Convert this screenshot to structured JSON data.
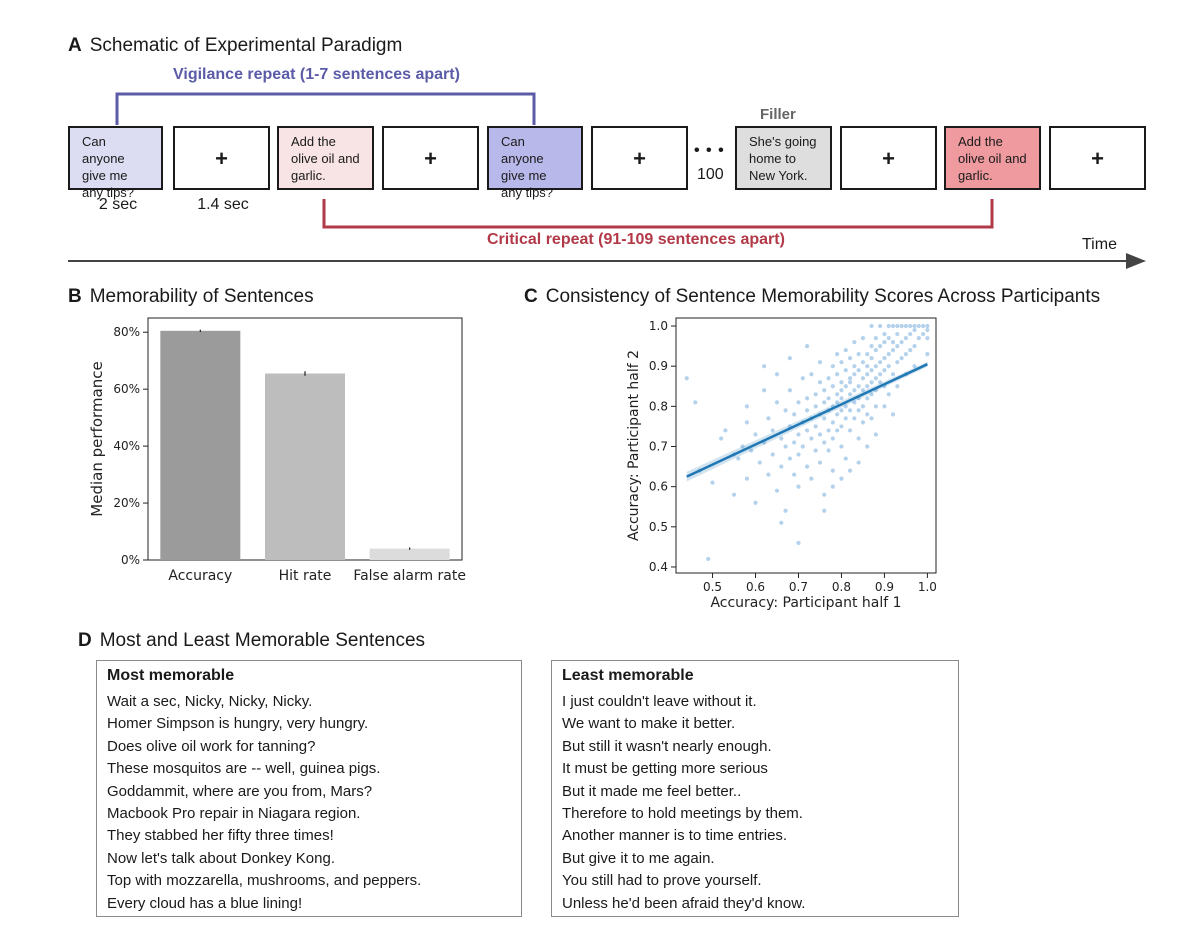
{
  "panel_a": {
    "letter": "A",
    "title": "Schematic of Experimental Paradigm",
    "vigilance_label": "Vigilance repeat (1-7 sentences apart)",
    "critical_label": "Critical repeat (91-109 sentences apart)",
    "filler_label": "Filler",
    "time_label": "Time",
    "dots": "• • •",
    "dots_count": "100",
    "duration_sentence": "2 sec",
    "duration_fixation": "1.4 sec",
    "fixation_symbol": "+",
    "sentences": {
      "s1": "Can anyone give me any tips?",
      "s2": "Add the olive oil and garlic.",
      "s3": "Can anyone give me any tips?",
      "filler": "She's going home to New York.",
      "s4": "Add the olive oil and garlic."
    },
    "colors": {
      "vigilance": "#5b5ba8",
      "critical": "#b23a48"
    }
  },
  "panel_b": {
    "letter": "B",
    "title": "Memorability of Sentences"
  },
  "panel_c": {
    "letter": "C",
    "title": "Consistency of Sentence Memorability Scores Across Participants"
  },
  "panel_d": {
    "letter": "D",
    "title": "Most and Least Memorable Sentences",
    "most_header": "Most memorable",
    "most": [
      "Wait a sec, Nicky, Nicky, Nicky.",
      "Homer Simpson is hungry, very hungry.",
      "Does olive oil work for tanning?",
      "These mosquitos are -- well, guinea pigs.",
      "Goddammit, where are you from, Mars?",
      "Macbook Pro repair in Niagara region.",
      "They stabbed her fifty three times!",
      "Now let's talk about Donkey Kong.",
      "Top with mozzarella, mushrooms, and peppers.",
      "Every cloud has a blue lining!"
    ],
    "least_header": "Least memorable",
    "least": [
      "I just couldn't leave without it.",
      "We want to make it better.",
      "But still it wasn't nearly enough.",
      "It must be getting more serious",
      "But it made me feel better..",
      "Therefore to hold meetings by them.",
      "Another manner is to time entries.",
      "But give it to me again.",
      "You still had to prove yourself.",
      "Unless he'd been afraid they'd know."
    ]
  },
  "chart_data": [
    {
      "type": "bar",
      "title": "Memorability of Sentences",
      "categories": [
        "Accuracy",
        "Hit rate",
        "False alarm rate"
      ],
      "values": [
        0.805,
        0.655,
        0.04
      ],
      "errors": [
        0.004,
        0.008,
        0.004
      ],
      "colors": [
        "#9b9b9b",
        "#bdbdbd",
        "#dcdcdc"
      ],
      "xlabel": "",
      "ylabel": "Median performance",
      "ylim": [
        0,
        0.85
      ],
      "yticks": [
        0,
        0.2,
        0.4,
        0.6,
        0.8
      ],
      "ytick_labels": [
        "0%",
        "20%",
        "40%",
        "60%",
        "80%"
      ]
    },
    {
      "type": "scatter",
      "title": "Consistency of Sentence Memorability Scores Across Participants",
      "xlabel": "Accuracy: Participant half 1",
      "ylabel": "Accuracy: Participant half 2",
      "xlim": [
        0.415,
        1.02
      ],
      "ylim": [
        0.385,
        1.02
      ],
      "xticks": [
        0.5,
        0.6,
        0.7,
        0.8,
        0.9,
        1.0
      ],
      "xtick_labels": [
        "0.5",
        "0.6",
        "0.7",
        "0.8",
        "0.9",
        "1.0"
      ],
      "yticks": [
        0.4,
        0.5,
        0.6,
        0.7,
        0.8,
        0.9,
        1.0
      ],
      "ytick_labels": [
        "0.4",
        "0.5",
        "0.6",
        "0.7",
        "0.8",
        "0.9",
        "1.0"
      ],
      "regression": {
        "x": [
          0.44,
          1.0
        ],
        "y": [
          0.625,
          0.905
        ]
      },
      "point_color": "#5b9bd5",
      "line_color": "#1f77b4",
      "points": [
        [
          0.44,
          0.87
        ],
        [
          0.46,
          0.81
        ],
        [
          0.47,
          0.64
        ],
        [
          0.49,
          0.42
        ],
        [
          0.5,
          0.61
        ],
        [
          0.52,
          0.72
        ],
        [
          0.53,
          0.74
        ],
        [
          0.55,
          0.58
        ],
        [
          0.56,
          0.67
        ],
        [
          0.57,
          0.7
        ],
        [
          0.58,
          0.76
        ],
        [
          0.58,
          0.62
        ],
        [
          0.59,
          0.69
        ],
        [
          0.6,
          0.73
        ],
        [
          0.6,
          0.56
        ],
        [
          0.61,
          0.66
        ],
        [
          0.62,
          0.84
        ],
        [
          0.62,
          0.71
        ],
        [
          0.63,
          0.63
        ],
        [
          0.63,
          0.77
        ],
        [
          0.64,
          0.68
        ],
        [
          0.64,
          0.74
        ],
        [
          0.65,
          0.59
        ],
        [
          0.65,
          0.81
        ],
        [
          0.66,
          0.72
        ],
        [
          0.66,
          0.65
        ],
        [
          0.67,
          0.79
        ],
        [
          0.67,
          0.7
        ],
        [
          0.67,
          0.54
        ],
        [
          0.68,
          0.75
        ],
        [
          0.68,
          0.67
        ],
        [
          0.68,
          0.84
        ],
        [
          0.69,
          0.71
        ],
        [
          0.69,
          0.63
        ],
        [
          0.69,
          0.78
        ],
        [
          0.7,
          0.73
        ],
        [
          0.7,
          0.81
        ],
        [
          0.7,
          0.6
        ],
        [
          0.7,
          0.68
        ],
        [
          0.71,
          0.76
        ],
        [
          0.71,
          0.87
        ],
        [
          0.71,
          0.7
        ],
        [
          0.72,
          0.74
        ],
        [
          0.72,
          0.65
        ],
        [
          0.72,
          0.82
        ],
        [
          0.72,
          0.79
        ],
        [
          0.73,
          0.72
        ],
        [
          0.73,
          0.77
        ],
        [
          0.73,
          0.62
        ],
        [
          0.73,
          0.88
        ],
        [
          0.74,
          0.75
        ],
        [
          0.74,
          0.83
        ],
        [
          0.74,
          0.69
        ],
        [
          0.74,
          0.8
        ],
        [
          0.75,
          0.73
        ],
        [
          0.75,
          0.78
        ],
        [
          0.75,
          0.86
        ],
        [
          0.75,
          0.66
        ],
        [
          0.75,
          0.91
        ],
        [
          0.76,
          0.77
        ],
        [
          0.76,
          0.81
        ],
        [
          0.76,
          0.71
        ],
        [
          0.76,
          0.84
        ],
        [
          0.76,
          0.58
        ],
        [
          0.77,
          0.79
        ],
        [
          0.77,
          0.74
        ],
        [
          0.77,
          0.87
        ],
        [
          0.77,
          0.82
        ],
        [
          0.77,
          0.69
        ],
        [
          0.78,
          0.8
        ],
        [
          0.78,
          0.76
        ],
        [
          0.78,
          0.9
        ],
        [
          0.78,
          0.85
        ],
        [
          0.78,
          0.72
        ],
        [
          0.78,
          0.64
        ],
        [
          0.79,
          0.83
        ],
        [
          0.79,
          0.78
        ],
        [
          0.79,
          0.88
        ],
        [
          0.79,
          0.74
        ],
        [
          0.79,
          0.93
        ],
        [
          0.79,
          0.81
        ],
        [
          0.8,
          0.84
        ],
        [
          0.8,
          0.79
        ],
        [
          0.8,
          0.86
        ],
        [
          0.8,
          0.75
        ],
        [
          0.8,
          0.91
        ],
        [
          0.8,
          0.7
        ],
        [
          0.8,
          0.82
        ],
        [
          0.81,
          0.85
        ],
        [
          0.81,
          0.8
        ],
        [
          0.81,
          0.89
        ],
        [
          0.81,
          0.77
        ],
        [
          0.81,
          0.94
        ],
        [
          0.81,
          0.67
        ],
        [
          0.82,
          0.83
        ],
        [
          0.82,
          0.87
        ],
        [
          0.82,
          0.79
        ],
        [
          0.82,
          0.92
        ],
        [
          0.82,
          0.74
        ],
        [
          0.82,
          0.86
        ],
        [
          0.83,
          0.84
        ],
        [
          0.83,
          0.9
        ],
        [
          0.83,
          0.81
        ],
        [
          0.83,
          0.96
        ],
        [
          0.83,
          0.77
        ],
        [
          0.83,
          0.88
        ],
        [
          0.84,
          0.85
        ],
        [
          0.84,
          0.82
        ],
        [
          0.84,
          0.93
        ],
        [
          0.84,
          0.79
        ],
        [
          0.84,
          0.89
        ],
        [
          0.84,
          0.72
        ],
        [
          0.85,
          0.87
        ],
        [
          0.85,
          0.84
        ],
        [
          0.85,
          0.91
        ],
        [
          0.85,
          0.8
        ],
        [
          0.85,
          0.97
        ],
        [
          0.85,
          0.76
        ],
        [
          0.86,
          0.88
        ],
        [
          0.86,
          0.85
        ],
        [
          0.86,
          0.93
        ],
        [
          0.86,
          0.82
        ],
        [
          0.86,
          0.9
        ],
        [
          0.86,
          0.78
        ],
        [
          0.87,
          0.89
        ],
        [
          0.87,
          0.86
        ],
        [
          0.87,
          0.95
        ],
        [
          0.87,
          0.83
        ],
        [
          0.87,
          0.92
        ],
        [
          0.87,
          1.0
        ],
        [
          0.88,
          0.9
        ],
        [
          0.88,
          0.87
        ],
        [
          0.88,
          0.94
        ],
        [
          0.88,
          0.84
        ],
        [
          0.88,
          0.97
        ],
        [
          0.88,
          0.8
        ],
        [
          0.89,
          0.91
        ],
        [
          0.89,
          0.88
        ],
        [
          0.89,
          0.95
        ],
        [
          0.89,
          0.86
        ],
        [
          0.89,
          1.0
        ],
        [
          0.9,
          0.92
        ],
        [
          0.9,
          0.89
        ],
        [
          0.9,
          0.96
        ],
        [
          0.9,
          0.85
        ],
        [
          0.9,
          0.98
        ],
        [
          0.91,
          0.93
        ],
        [
          0.91,
          0.9
        ],
        [
          0.91,
          0.97
        ],
        [
          0.91,
          1.0
        ],
        [
          0.92,
          0.94
        ],
        [
          0.92,
          0.88
        ],
        [
          0.92,
          0.96
        ],
        [
          0.92,
          1.0
        ],
        [
          0.93,
          0.95
        ],
        [
          0.93,
          0.91
        ],
        [
          0.93,
          0.98
        ],
        [
          0.93,
          1.0
        ],
        [
          0.94,
          0.96
        ],
        [
          0.94,
          0.92
        ],
        [
          0.94,
          1.0
        ],
        [
          0.95,
          0.97
        ],
        [
          0.95,
          0.93
        ],
        [
          0.95,
          1.0
        ],
        [
          0.96,
          0.98
        ],
        [
          0.96,
          0.94
        ],
        [
          0.96,
          1.0
        ],
        [
          0.97,
          0.99
        ],
        [
          0.97,
          0.95
        ],
        [
          0.97,
          1.0
        ],
        [
          0.98,
          0.97
        ],
        [
          0.98,
          1.0
        ],
        [
          0.99,
          0.98
        ],
        [
          0.99,
          1.0
        ],
        [
          1.0,
          0.97
        ],
        [
          1.0,
          0.99
        ],
        [
          1.0,
          1.0
        ],
        [
          1.0,
          0.93
        ],
        [
          0.9,
          0.8
        ],
        [
          0.93,
          0.85
        ],
        [
          0.95,
          0.88
        ],
        [
          0.97,
          0.9
        ],
        [
          0.87,
          0.77
        ],
        [
          0.91,
          0.83
        ],
        [
          0.62,
          0.9
        ],
        [
          0.68,
          0.92
        ],
        [
          0.72,
          0.95
        ],
        [
          0.65,
          0.88
        ],
        [
          0.7,
          0.46
        ],
        [
          0.66,
          0.51
        ],
        [
          0.78,
          0.6
        ],
        [
          0.84,
          0.66
        ],
        [
          0.88,
          0.73
        ],
        [
          0.92,
          0.78
        ],
        [
          0.76,
          0.54
        ],
        [
          0.8,
          0.62
        ],
        [
          0.58,
          0.8
        ],
        [
          0.55,
          0.68
        ],
        [
          0.86,
          0.7
        ],
        [
          0.82,
          0.64
        ]
      ]
    }
  ]
}
